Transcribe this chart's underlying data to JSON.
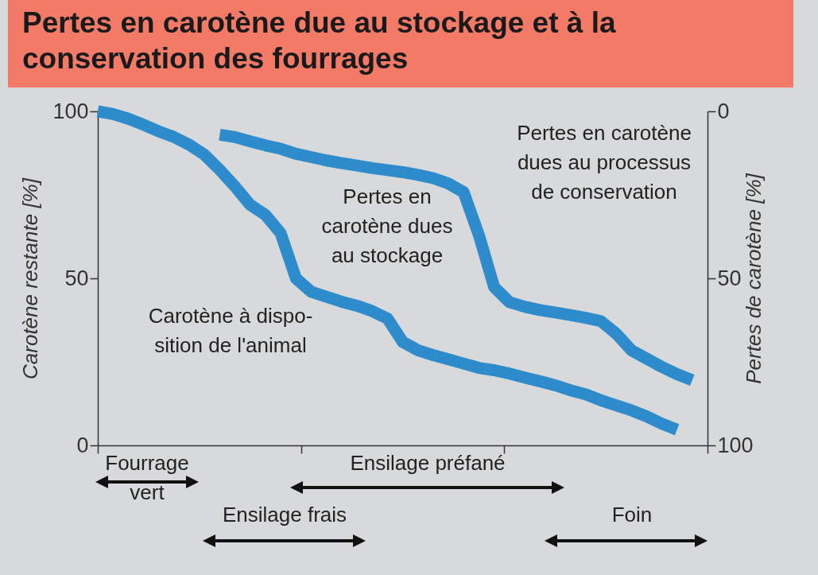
{
  "chart_data": {
    "type": "line",
    "title": "Pertes en carotène due au stockage et à la conservation des fourrages",
    "ylabel": "Carotène restante [%]",
    "y2label": "Pertes de carotène [%]",
    "categories": [
      null,
      null,
      null,
      null,
      null,
      null,
      null,
      null,
      null,
      null,
      null,
      null,
      null,
      null,
      null,
      null,
      null,
      null,
      null,
      null,
      null,
      null,
      null,
      null,
      null,
      null,
      null,
      null,
      null,
      null,
      null,
      null,
      null,
      null,
      null,
      null,
      null,
      null,
      null,
      null,
      null
    ],
    "series": [
      {
        "type": "line",
        "color": "#2e8bcc",
        "values": [
          100,
          99.2,
          97.8,
          96,
          94,
          92.3,
          90,
          87,
          82.5,
          77.5,
          72,
          69,
          63.5,
          50,
          46,
          44.5,
          43,
          41.8,
          40.2,
          38,
          31,
          28.5,
          27,
          25.8,
          24.5,
          23.2,
          22.5,
          21.5,
          20.3,
          19.2,
          18,
          16.5,
          15.3,
          13.5,
          12,
          10.5,
          8.7,
          6.5,
          4.7,
          null,
          null
        ]
      },
      {
        "type": "line",
        "color": "#2e8bcc",
        "values": [
          null,
          null,
          null,
          null,
          null,
          null,
          null,
          null,
          93,
          92.3,
          91,
          89.8,
          88.8,
          87.3,
          86.3,
          85.3,
          84.5,
          83.8,
          83,
          82.4,
          81.8,
          81,
          80,
          78.4,
          75.8,
          63,
          47.4,
          42.9,
          41.5,
          40.5,
          39.8,
          39,
          38.2,
          37.2,
          33.5,
          28.5,
          26,
          23.5,
          21.3,
          19.5,
          null
        ]
      }
    ],
    "ylim": [
      0,
      100
    ],
    "yticks": [
      0,
      50,
      100
    ],
    "y2lim": [
      100,
      0
    ],
    "y2ticks": [
      0,
      50,
      100
    ],
    "tick_labels": "y",
    "annotations": [
      "Pertes en carotène\ndues au processus\nde conservation",
      "Pertes en\ncarotène dues\nau stockage",
      "Carotène à dispo-\nsition de l'animal",
      "Fourrage\nvert",
      "Ensilage frais",
      "Ensilage préfané",
      "Foin"
    ]
  }
}
